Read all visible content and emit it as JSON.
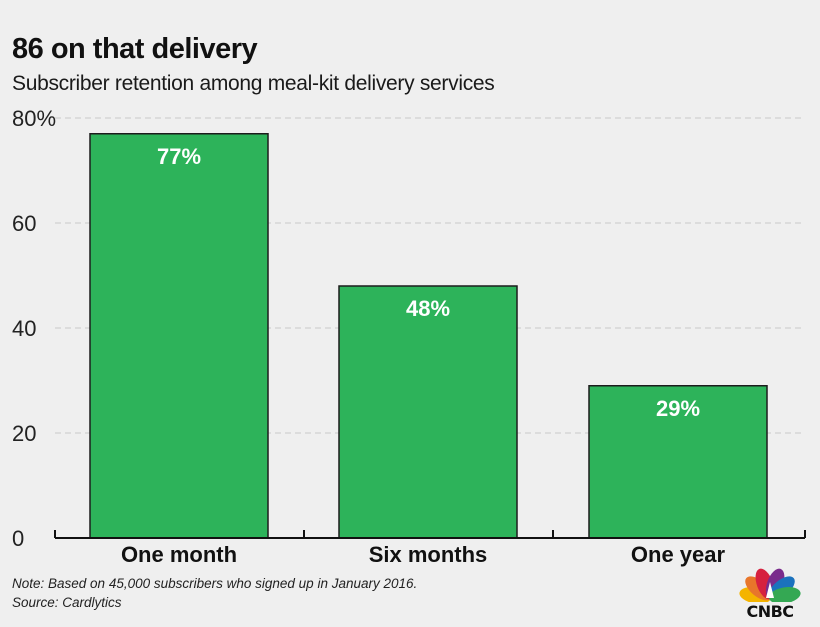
{
  "header": {
    "title": "86 on that delivery",
    "subtitle": "Subscriber retention among meal-kit delivery services"
  },
  "chart_data": {
    "type": "bar",
    "title": "86 on that delivery",
    "subtitle": "Subscriber retention among meal-kit delivery services",
    "categories": [
      "One month",
      "Six months",
      "One year"
    ],
    "values": [
      77,
      48,
      29
    ],
    "data_labels": [
      "77%",
      "48%",
      "29%"
    ],
    "xlabel": "",
    "ylabel": "",
    "ylim": [
      0,
      80
    ],
    "yticks": [
      0,
      20,
      40,
      60,
      80
    ],
    "ytick_labels": [
      "0",
      "20",
      "40",
      "60",
      "80%"
    ],
    "grid": true,
    "bar_color": "#2db35a",
    "bar_edge_color": "#1c1c1c"
  },
  "footer": {
    "note": "Note: Based on 45,000 subscribers who signed up in January 2016.",
    "source": "Source: Cardlytics"
  },
  "logo": {
    "text": "CNBC",
    "icon": "peacock-icon",
    "colors": [
      "#f4b400",
      "#e8762b",
      "#d6213f",
      "#7a2c8c",
      "#1b72bd",
      "#34a853"
    ]
  }
}
